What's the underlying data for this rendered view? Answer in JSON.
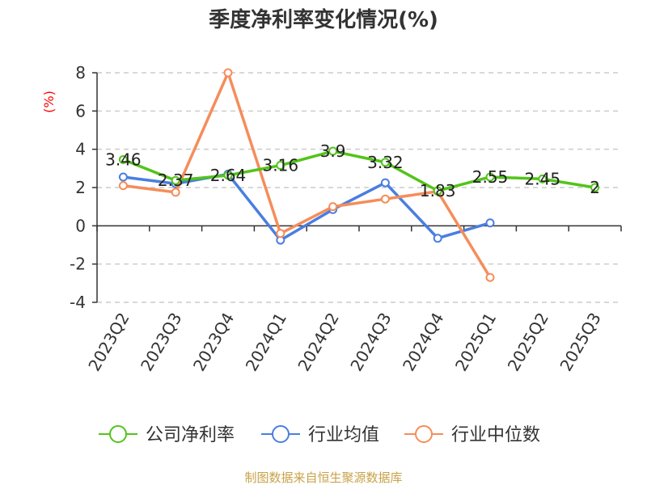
{
  "chart_data": {
    "type": "line",
    "title": "季度净利率变化情况(%)",
    "ylabel": "(%)",
    "ylim": [
      -4,
      8
    ],
    "yticks": [
      -4,
      -2,
      0,
      2,
      4,
      6,
      8
    ],
    "grid": true,
    "legend_position": "bottom",
    "categories": [
      "2023Q2",
      "2023Q3",
      "2023Q4",
      "2024Q1",
      "2024Q2",
      "2024Q3",
      "2024Q4",
      "2025Q1",
      "2025Q2",
      "2025Q3"
    ],
    "series": [
      {
        "name": "公司净利率",
        "color": "#52c41a",
        "values": [
          3.46,
          2.37,
          2.64,
          3.16,
          3.9,
          3.32,
          1.83,
          2.55,
          2.45,
          2
        ],
        "labels": [
          "3.46",
          "2.37",
          "2.64",
          "3.16",
          "3.9",
          "3.32",
          "1.83",
          "2.55",
          "2.45",
          "2"
        ]
      },
      {
        "name": "行业均值",
        "color": "#4a7ee0",
        "values": [
          2.55,
          2.2,
          2.7,
          -0.75,
          0.85,
          2.25,
          -0.65,
          0.15,
          null,
          null
        ]
      },
      {
        "name": "行业中位数",
        "color": "#f58d5a",
        "values": [
          2.1,
          1.75,
          8.0,
          -0.4,
          1.0,
          1.4,
          1.8,
          -2.7,
          null,
          null
        ]
      }
    ],
    "source": "制图数据来自恒生聚源数据库"
  }
}
